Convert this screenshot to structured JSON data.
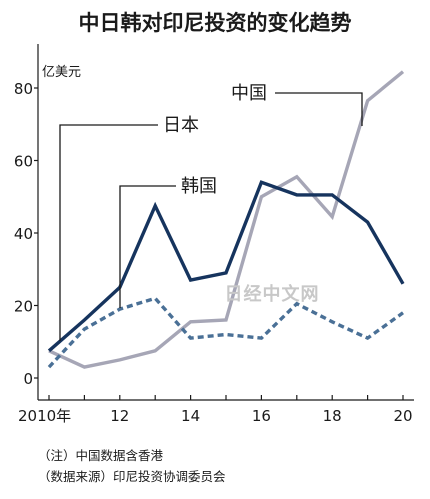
{
  "chart_data": {
    "type": "line",
    "title": "中日韩对印尼投资的变化趋势",
    "ylabel": "亿美元",
    "ylim": [
      0,
      90
    ],
    "yticks": [
      0,
      20,
      40,
      60,
      80
    ],
    "xlim": [
      2010,
      2020
    ],
    "x": [
      2010,
      2011,
      2012,
      2013,
      2014,
      2015,
      2016,
      2017,
      2018,
      2019,
      2020
    ],
    "xtick_labels": [
      {
        "x": 2010,
        "label": "2010年"
      },
      {
        "x": 2012,
        "label": "12"
      },
      {
        "x": 2014,
        "label": "14"
      },
      {
        "x": 2016,
        "label": "16"
      },
      {
        "x": 2018,
        "label": "18"
      },
      {
        "x": 2020,
        "label": "20"
      }
    ],
    "series": [
      {
        "name": "中国",
        "color": "#a6a6b6",
        "style": "solid",
        "values": [
          7.5,
          3,
          5,
          7.5,
          15.5,
          16,
          50,
          55.5,
          44.5,
          76.5,
          84.5
        ]
      },
      {
        "name": "日本",
        "color": "#16345e",
        "style": "solid",
        "values": [
          7.5,
          16,
          25,
          47.5,
          27,
          29,
          54,
          50.5,
          50.5,
          43,
          26
        ]
      },
      {
        "name": "韩国",
        "color": "#4a7096",
        "style": "dashed",
        "values": [
          3,
          13.5,
          19,
          22,
          11,
          12,
          11,
          20.5,
          15.5,
          11,
          18
        ]
      }
    ],
    "grid": false
  },
  "notes": [
    "（注）中国数据含香港",
    "（数据来源）印尼投资协调委员会"
  ],
  "watermark": "日经中文网"
}
